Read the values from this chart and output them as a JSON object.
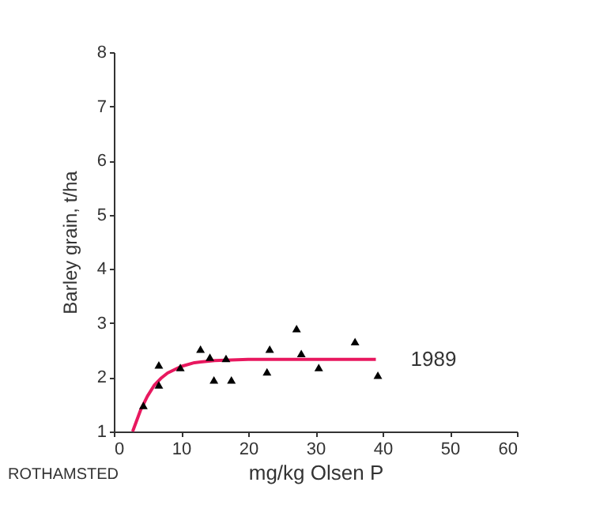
{
  "chart_data": {
    "type": "scatter",
    "xlabel": "mg/kg Olsen P",
    "ylabel": "Barley grain, t/ha",
    "xlim": [
      0,
      60
    ],
    "ylim": [
      1,
      8
    ],
    "xticks": [
      0,
      10,
      20,
      30,
      40,
      50,
      60
    ],
    "yticks": [
      1,
      2,
      3,
      4,
      5,
      6,
      7,
      8
    ],
    "grid": false,
    "series": [
      {
        "color": "#000000",
        "marker": "triangle",
        "x": [
          4.4,
          6.7,
          6.7,
          9.9,
          12.9,
          14.3,
          14.9,
          16.7,
          17.5,
          22.8,
          23.2,
          27.2,
          27.9,
          30.5,
          35.9,
          39.3
        ],
        "values": [
          1.48,
          2.23,
          1.86,
          2.18,
          2.52,
          2.37,
          1.95,
          2.35,
          1.95,
          2.1,
          2.52,
          2.9,
          2.44,
          2.18,
          2.66,
          2.04
        ]
      },
      {
        "type": "line",
        "name": "1989",
        "color": "#e8185f",
        "marker": "none",
        "line_style": "solid",
        "x": [
          2.8,
          4,
          5,
          6,
          7,
          8,
          10,
          12,
          15,
          20,
          39
        ],
        "values": [
          1,
          1.4,
          1.65,
          1.85,
          1.98,
          2.08,
          2.2,
          2.27,
          2.31,
          2.33,
          2.33
        ]
      }
    ],
    "annotations": [
      "ROTHAMSTED"
    ]
  }
}
